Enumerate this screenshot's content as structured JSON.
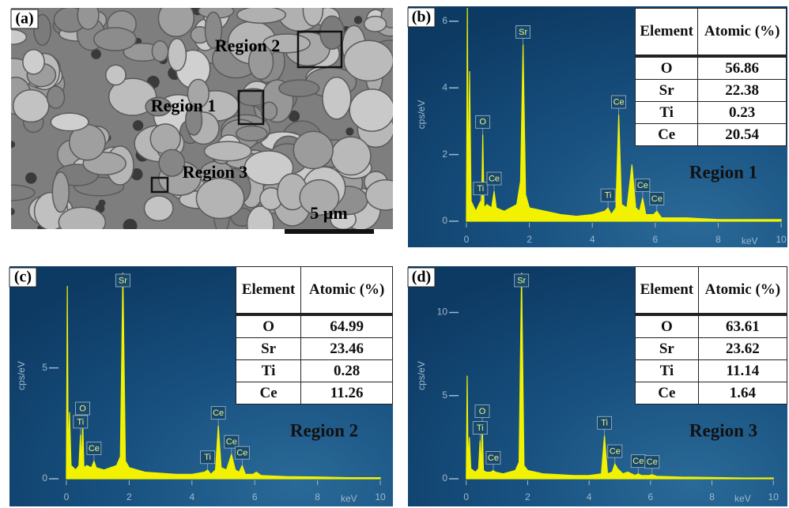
{
  "panel_a": {
    "label": "(a)",
    "regions": [
      "Region 2",
      "Region 1",
      "Region 3"
    ],
    "scale_bar": "5 µm"
  },
  "chart_data": [
    {
      "type": "line",
      "panel_label": "(b)",
      "region": "Region 1",
      "y_label": "cps/eV",
      "x_label": "keV",
      "xlim": [
        -0.2,
        10.2
      ],
      "ylim": [
        0,
        6.4
      ],
      "xticks": [
        0,
        2,
        4,
        6,
        8,
        10
      ],
      "yticks": [
        0,
        2,
        4,
        6
      ],
      "color": "#f2f200",
      "x": [
        0,
        0.03,
        0.06,
        0.1,
        0.15,
        0.3,
        0.4,
        0.45,
        0.48,
        0.52,
        0.56,
        0.65,
        0.8,
        0.88,
        0.95,
        1.2,
        1.6,
        1.72,
        1.8,
        1.88,
        2.0,
        2.5,
        3,
        3.5,
        4,
        4.4,
        4.5,
        4.6,
        4.75,
        4.84,
        4.93,
        5.1,
        5.26,
        5.38,
        5.5,
        5.6,
        5.7,
        5.95,
        6.05,
        6.2,
        7,
        8,
        9,
        10
      ],
      "values": [
        0,
        6.4,
        0.8,
        4.5,
        0.6,
        0.3,
        0.5,
        0.6,
        0.3,
        2.6,
        0.4,
        0.5,
        0.4,
        0.9,
        0.4,
        0.3,
        0.5,
        1.2,
        5.3,
        0.8,
        0.4,
        0.3,
        0.2,
        0.15,
        0.2,
        0.3,
        0.4,
        0.2,
        0.4,
        3.2,
        0.5,
        0.4,
        1.7,
        0.4,
        0.3,
        0.7,
        0.2,
        0.2,
        0.3,
        0.1,
        0.1,
        0.05,
        0.05,
        0.05
      ],
      "annotations": [
        {
          "text": "O",
          "x": 0.52
        },
        {
          "text": "Ti",
          "x": 0.45
        },
        {
          "text": "Ce",
          "x": 0.88
        },
        {
          "text": "Sr",
          "x": 1.8
        },
        {
          "text": "Ti",
          "x": 4.5
        },
        {
          "text": "Ce",
          "x": 4.84
        },
        {
          "text": "Ce",
          "x": 5.6
        },
        {
          "text": "Ce",
          "x": 6.05
        }
      ],
      "table": {
        "columns": [
          "Element",
          "Atomic (%)"
        ],
        "rows": [
          [
            "O",
            56.86
          ],
          [
            "Sr",
            22.38
          ],
          [
            "Ti",
            0.23
          ],
          [
            "Ce",
            20.54
          ]
        ]
      }
    },
    {
      "type": "line",
      "panel_label": "(c)",
      "region": "Region 2",
      "y_label": "cps/eV",
      "x_label": "keV",
      "xlim": [
        -0.2,
        10.2
      ],
      "ylim": [
        0,
        9.3
      ],
      "xticks": [
        0,
        2,
        4,
        6,
        8,
        10
      ],
      "yticks": [
        0,
        5
      ],
      "color": "#f2f200",
      "x": [
        0,
        0.03,
        0.06,
        0.1,
        0.15,
        0.3,
        0.4,
        0.45,
        0.48,
        0.52,
        0.56,
        0.65,
        0.8,
        0.88,
        0.95,
        1.2,
        1.6,
        1.72,
        1.8,
        1.88,
        2.0,
        2.5,
        3,
        3.5,
        4,
        4.4,
        4.5,
        4.6,
        4.75,
        4.84,
        4.93,
        5.1,
        5.26,
        5.38,
        5.5,
        5.6,
        5.7,
        5.95,
        6.05,
        6.2,
        7,
        8,
        9,
        10
      ],
      "values": [
        0,
        8.7,
        0.8,
        3.0,
        0.6,
        0.4,
        0.6,
        2.0,
        0.5,
        2.6,
        0.5,
        0.6,
        0.5,
        0.8,
        0.5,
        0.4,
        0.6,
        1.0,
        9.3,
        0.8,
        0.5,
        0.3,
        0.25,
        0.2,
        0.2,
        0.3,
        0.4,
        0.2,
        0.4,
        2.4,
        0.5,
        0.4,
        1.1,
        0.4,
        0.3,
        0.6,
        0.2,
        0.2,
        0.3,
        0.15,
        0.1,
        0.08,
        0.05,
        0.05
      ],
      "annotations": [
        {
          "text": "O",
          "x": 0.52
        },
        {
          "text": "Ti",
          "x": 0.45
        },
        {
          "text": "Ce",
          "x": 0.88
        },
        {
          "text": "Sr",
          "x": 1.8
        },
        {
          "text": "Ti",
          "x": 4.5
        },
        {
          "text": "Ce",
          "x": 4.84
        },
        {
          "text": "Ce",
          "x": 5.26
        },
        {
          "text": "Ce",
          "x": 5.6
        }
      ],
      "table": {
        "columns": [
          "Element",
          "Atomic (%)"
        ],
        "rows": [
          [
            "O",
            64.99
          ],
          [
            "Sr",
            23.46
          ],
          [
            "Ti",
            0.28
          ],
          [
            "Ce",
            11.26
          ]
        ]
      }
    },
    {
      "type": "line",
      "panel_label": "(d)",
      "region": "Region 3",
      "y_label": "cps/eV",
      "x_label": "keV",
      "xlim": [
        -0.2,
        10.2
      ],
      "ylim": [
        0,
        12.4
      ],
      "xticks": [
        0,
        2,
        4,
        6,
        8,
        10
      ],
      "yticks": [
        0,
        5,
        10
      ],
      "color": "#f2f200",
      "x": [
        0,
        0.03,
        0.06,
        0.1,
        0.15,
        0.3,
        0.4,
        0.45,
        0.48,
        0.52,
        0.56,
        0.65,
        0.8,
        0.88,
        0.95,
        1.2,
        1.6,
        1.72,
        1.8,
        1.88,
        2.0,
        2.5,
        3,
        3.5,
        4,
        4.4,
        4.5,
        4.6,
        4.75,
        4.84,
        4.93,
        5.1,
        5.26,
        5.38,
        5.5,
        5.6,
        5.7,
        5.95,
        6.05,
        6.2,
        7,
        8,
        9,
        10
      ],
      "values": [
        0,
        6.2,
        0.8,
        2.5,
        0.6,
        0.4,
        0.6,
        2.3,
        0.5,
        3.3,
        0.5,
        0.4,
        0.4,
        0.5,
        0.4,
        0.3,
        0.5,
        1.0,
        12.4,
        0.8,
        0.5,
        0.3,
        0.25,
        0.2,
        0.2,
        0.3,
        2.6,
        0.3,
        0.4,
        0.9,
        0.6,
        0.3,
        0.4,
        0.3,
        0.2,
        0.3,
        0.2,
        0.2,
        0.25,
        0.15,
        0.1,
        0.08,
        0.05,
        0.05
      ],
      "annotations": [
        {
          "text": "O",
          "x": 0.52
        },
        {
          "text": "Ti",
          "x": 0.45
        },
        {
          "text": "Ce",
          "x": 0.88
        },
        {
          "text": "Sr",
          "x": 1.8
        },
        {
          "text": "Ti",
          "x": 4.5
        },
        {
          "text": "Ce",
          "x": 4.84
        },
        {
          "text": "Ce",
          "x": 5.6
        },
        {
          "text": "Ce",
          "x": 6.05
        }
      ],
      "table": {
        "columns": [
          "Element",
          "Atomic (%)"
        ],
        "rows": [
          [
            "O",
            63.61
          ],
          [
            "Sr",
            23.62
          ],
          [
            "Ti",
            11.14
          ],
          [
            "Ce",
            1.64
          ]
        ]
      }
    }
  ]
}
